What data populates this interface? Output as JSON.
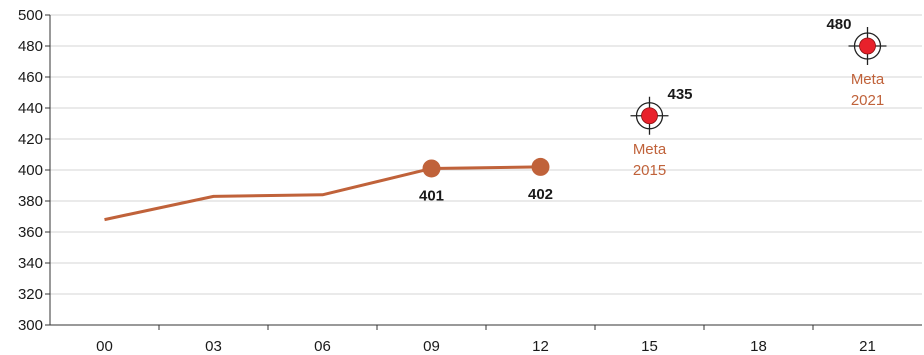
{
  "chart_data": {
    "type": "line",
    "categories": [
      "00",
      "03",
      "06",
      "09",
      "12",
      "15",
      "18",
      "21"
    ],
    "ylim": [
      300,
      500
    ],
    "yticks": [
      300,
      320,
      340,
      360,
      380,
      400,
      420,
      440,
      460,
      480,
      500
    ],
    "grid": true,
    "title": "",
    "xlabel": "",
    "ylabel": "",
    "series": [
      {
        "points": [
          {
            "x": "00",
            "y": 368
          },
          {
            "x": "03",
            "y": 383
          },
          {
            "x": "06",
            "y": 384
          },
          {
            "x": "09",
            "y": 401,
            "label": "401",
            "marker": true
          },
          {
            "x": "12",
            "y": 402,
            "label": "402",
            "marker": true
          }
        ]
      }
    ],
    "goals": [
      {
        "x": "15",
        "y": 435,
        "value_label": "435",
        "text": [
          "Meta",
          "2015"
        ]
      },
      {
        "x": "21",
        "y": 480,
        "value_label": "480",
        "text": [
          "Meta",
          "2021"
        ]
      }
    ]
  },
  "colors": {
    "series_line": "#c0623a",
    "goal_marker": "#e8212b",
    "goal_text": "#c0623a",
    "grid": "#d4d4d4",
    "axis": "#333333"
  }
}
